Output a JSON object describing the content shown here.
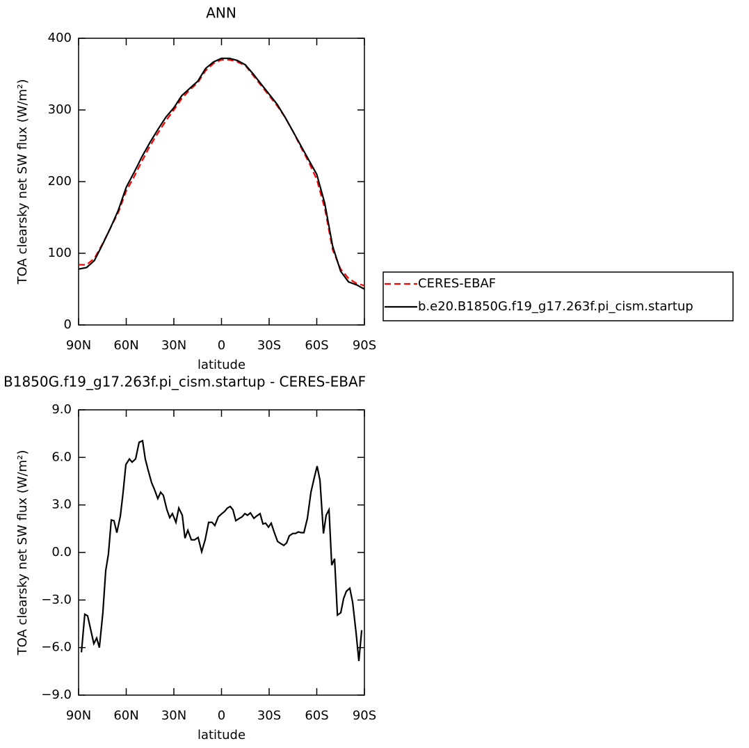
{
  "chart_data": [
    {
      "type": "line",
      "title": "ANN",
      "xlabel": "latitude",
      "ylabel": "TOA clearsky net SW flux (W/m²)",
      "x": [
        90,
        85,
        80,
        75,
        70,
        65,
        60,
        55,
        50,
        45,
        40,
        35,
        30,
        25,
        20,
        15,
        10,
        5,
        0,
        -5,
        -10,
        -15,
        -20,
        -25,
        -30,
        -35,
        -40,
        -45,
        -50,
        -55,
        -60,
        -65,
        -70,
        -75,
        -80,
        -85,
        -90
      ],
      "series": [
        {
          "name": "CERES-EBAF",
          "color": "#ff0000",
          "dash": true,
          "values": [
            84,
            84,
            93,
            113,
            135,
            157,
            187,
            207,
            229,
            250,
            268,
            285,
            300,
            316,
            328,
            338,
            355,
            365,
            370,
            370,
            367,
            362,
            348,
            334,
            320,
            306,
            290,
            270,
            248,
            227,
            203,
            163,
            105,
            78,
            65,
            58,
            55
          ]
        },
        {
          "name": "b.e20.B1850G.f19_g17.263f.pi_cism.startup",
          "color": "#000000",
          "dash": false,
          "values": [
            78,
            80,
            90,
            112,
            135,
            160,
            192,
            213,
            235,
            255,
            273,
            290,
            303,
            320,
            330,
            340,
            358,
            367,
            372,
            372,
            369,
            363,
            350,
            336,
            322,
            308,
            290,
            270,
            250,
            230,
            210,
            170,
            110,
            75,
            60,
            56,
            50
          ]
        }
      ],
      "xlim": [
        90,
        -90
      ],
      "xticks": [
        {
          "value": 90,
          "label": "90N"
        },
        {
          "value": 60,
          "label": "60N"
        },
        {
          "value": 30,
          "label": "30N"
        },
        0,
        {
          "value": -30,
          "label": "30S"
        },
        {
          "value": -60,
          "label": "60S"
        },
        {
          "value": -90,
          "label": "90S"
        }
      ],
      "ylim": [
        0,
        400
      ],
      "yticks": [
        0,
        100,
        200,
        300,
        400
      ]
    },
    {
      "type": "line",
      "title": "B1850G.f19_g17.263f.pi_cism.startup - CERES-EBAF",
      "xlabel": "latitude",
      "ylabel": "TOA clearsky net SW flux (W/m²)",
      "x": [
        88.2,
        86.1,
        84.3,
        80.4,
        78.6,
        76.9,
        74.7,
        72.9,
        71.2,
        69.4,
        67.7,
        65.9,
        63.7,
        62.0,
        60.2,
        58.0,
        56.3,
        54.1,
        51.9,
        49.7,
        48.0,
        46.2,
        44.0,
        42.3,
        40.1,
        38.3,
        36.6,
        34.4,
        32.6,
        30.9,
        28.7,
        26.9,
        24.7,
        23.0,
        21.2,
        19.0,
        16.9,
        14.7,
        12.5,
        10.3,
        8.1,
        5.9,
        4.2,
        2.0,
        -0.2,
        -2.0,
        -3.7,
        -5.5,
        -7.2,
        -9.0,
        -11.2,
        -12.9,
        -14.7,
        -16.4,
        -18.2,
        -20.4,
        -22.1,
        -24.3,
        -26.1,
        -27.8,
        -29.6,
        -31.3,
        -33.1,
        -35.3,
        -37.5,
        -39.2,
        -41.0,
        -42.7,
        -44.9,
        -46.7,
        -48.4,
        -50.2,
        -51.9,
        -54.1,
        -56.3,
        -58.5,
        -60.2,
        -62.0,
        -64.2,
        -65.9,
        -67.7,
        -69.4,
        -71.2,
        -73.0,
        -75.1,
        -76.9,
        -78.6,
        -80.8,
        -82.6,
        -84.8,
        -86.5,
        -88.3
      ],
      "values": [
        -6.3,
        -3.9,
        -4.0,
        -5.75,
        -5.4,
        -6.0,
        -3.8,
        -1.15,
        -0.1,
        2.05,
        2.0,
        1.25,
        2.3,
        3.75,
        5.55,
        5.9,
        5.7,
        5.9,
        6.95,
        7.05,
        5.9,
        5.2,
        4.4,
        4.0,
        3.4,
        3.8,
        3.6,
        2.7,
        2.2,
        2.45,
        1.9,
        2.8,
        2.35,
        0.9,
        1.4,
        0.8,
        0.8,
        0.95,
        0.05,
        0.8,
        1.9,
        1.9,
        1.7,
        2.25,
        2.45,
        2.6,
        2.8,
        2.9,
        2.7,
        2.0,
        2.15,
        2.25,
        2.45,
        2.35,
        2.5,
        2.15,
        2.3,
        2.45,
        1.8,
        1.85,
        1.6,
        1.85,
        1.3,
        0.7,
        0.55,
        0.45,
        0.6,
        1.05,
        1.2,
        1.2,
        1.3,
        1.25,
        1.25,
        2.15,
        3.8,
        4.75,
        5.45,
        4.55,
        1.2,
        2.35,
        2.7,
        -0.8,
        -0.4,
        -3.95,
        -3.8,
        -2.9,
        -2.45,
        -2.25,
        -3.15,
        -5.1,
        -6.85,
        -4.9
      ],
      "color": "#000000",
      "xlim": [
        90,
        -90
      ],
      "xticks": [
        {
          "value": 90,
          "label": "90N"
        },
        {
          "value": 60,
          "label": "60N"
        },
        {
          "value": 30,
          "label": "30N"
        },
        0,
        {
          "value": -30,
          "label": "30S"
        },
        {
          "value": -60,
          "label": "60S"
        },
        {
          "value": -90,
          "label": "90S"
        }
      ],
      "ylim": [
        -9,
        9
      ],
      "yticks": [
        {
          "value": -9,
          "label": "−9.0"
        },
        {
          "value": -6,
          "label": "−6.0"
        },
        {
          "value": -3,
          "label": "−3.0"
        },
        {
          "value": 0,
          "label": "0.0"
        },
        {
          "value": 3,
          "label": "3.0"
        },
        {
          "value": 6,
          "label": "6.0"
        },
        {
          "value": 9,
          "label": "9.0"
        }
      ]
    }
  ]
}
